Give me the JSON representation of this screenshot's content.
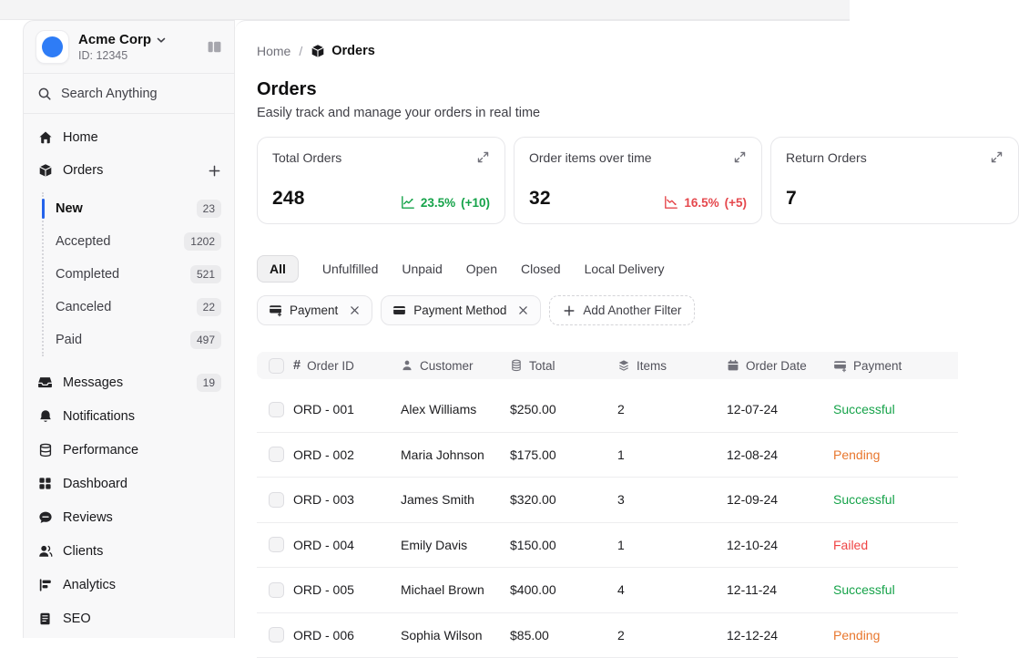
{
  "colors": {
    "accent_blue": "#2563eb",
    "logo_blue": "#2e7cf6",
    "green": "#16a34a",
    "red": "#e5484d",
    "status": {
      "green": "#16a34a",
      "orange": "#e8772e",
      "red": "#ef4444"
    }
  },
  "sidebar": {
    "org": {
      "name": "Acme Corp",
      "id": "ID: 12345"
    },
    "search": {
      "placeholder": "Search Anything"
    },
    "nav": [
      {
        "label": "Home",
        "icon": "home"
      },
      {
        "label": "Orders",
        "icon": "package",
        "trailing_icon": "plus"
      }
    ],
    "orders_children": [
      {
        "label": "New",
        "count": "23",
        "active": true
      },
      {
        "label": "Accepted",
        "count": "1202"
      },
      {
        "label": "Completed",
        "count": "521"
      },
      {
        "label": "Canceled",
        "count": "22"
      },
      {
        "label": "Paid",
        "count": "497"
      }
    ],
    "nav_lower": [
      {
        "label": "Messages",
        "icon": "inbox",
        "count": "19"
      },
      {
        "label": "Notifications",
        "icon": "bell"
      },
      {
        "label": "Performance",
        "icon": "database"
      },
      {
        "label": "Dashboard",
        "icon": "grid"
      },
      {
        "label": "Reviews",
        "icon": "chat"
      },
      {
        "label": "Clients",
        "icon": "users"
      },
      {
        "label": "Analytics",
        "icon": "chart"
      },
      {
        "label": "SEO",
        "icon": "doc"
      }
    ]
  },
  "breadcrumb": {
    "home": "Home",
    "separator": "/",
    "current": "Orders"
  },
  "page": {
    "title": "Orders",
    "subtitle": "Easily track and manage your orders in real time"
  },
  "stat_cards": [
    {
      "title": "Total Orders",
      "value": "248",
      "trend_pct": "23.5%",
      "trend_delta": "(+10)",
      "trend": "up"
    },
    {
      "title": "Order items over time",
      "value": "32",
      "trend_pct": "16.5%",
      "trend_delta": "(+5)",
      "trend": "down"
    },
    {
      "title": "Return Orders",
      "value": "7"
    }
  ],
  "tabs": [
    {
      "label": "All",
      "active": true
    },
    {
      "label": "Unfulfilled"
    },
    {
      "label": "Unpaid"
    },
    {
      "label": "Open"
    },
    {
      "label": "Closed"
    },
    {
      "label": "Local Delivery"
    }
  ],
  "filters": {
    "chips": [
      {
        "label": "Payment",
        "icon": "card-plus"
      },
      {
        "label": "Payment Method",
        "icon": "card"
      }
    ],
    "add_label": "Add Another Filter"
  },
  "table": {
    "columns": [
      {
        "label": "Order ID",
        "icon": "hash"
      },
      {
        "label": "Customer",
        "icon": "user"
      },
      {
        "label": "Total",
        "icon": "coins"
      },
      {
        "label": "Items",
        "icon": "layers"
      },
      {
        "label": "Order Date",
        "icon": "calendar"
      },
      {
        "label": "Payment",
        "icon": "card-plus"
      }
    ],
    "rows": [
      {
        "id": "ORD - 001",
        "customer": "Alex Williams",
        "total": "$250.00",
        "items": "2",
        "date": "12-07-24",
        "status": "Successful",
        "status_color": "green"
      },
      {
        "id": "ORD - 002",
        "customer": "Maria Johnson",
        "total": "$175.00",
        "items": "1",
        "date": "12-08-24",
        "status": "Pending",
        "status_color": "orange"
      },
      {
        "id": "ORD - 003",
        "customer": "James Smith",
        "total": "$320.00",
        "items": "3",
        "date": "12-09-24",
        "status": "Successful",
        "status_color": "green"
      },
      {
        "id": "ORD - 004",
        "customer": "Emily Davis",
        "total": "$150.00",
        "items": "1",
        "date": "12-10-24",
        "status": "Failed",
        "status_color": "red"
      },
      {
        "id": "ORD - 005",
        "customer": "Michael Brown",
        "total": "$400.00",
        "items": "4",
        "date": "12-11-24",
        "status": "Successful",
        "status_color": "green"
      },
      {
        "id": "ORD - 006",
        "customer": "Sophia Wilson",
        "total": "$85.00",
        "items": "2",
        "date": "12-12-24",
        "status": "Pending",
        "status_color": "orange"
      }
    ]
  }
}
